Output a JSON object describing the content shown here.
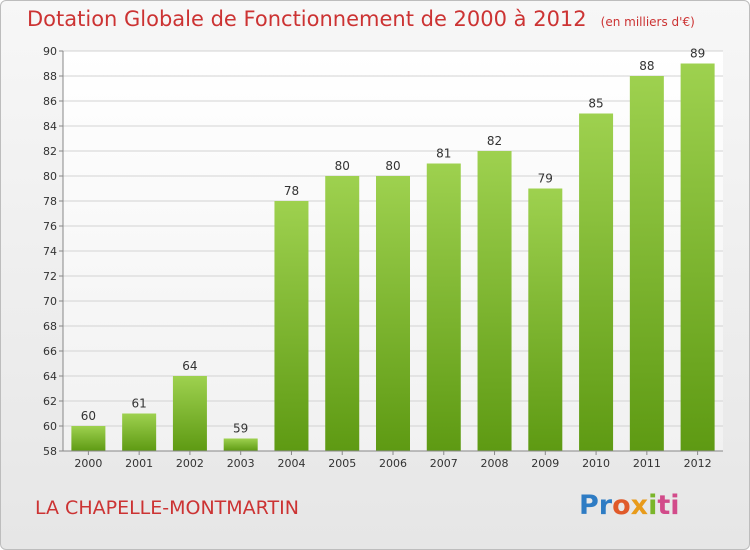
{
  "header": {
    "title": "Dotation Globale de Fonctionnement de 2000 à 2012",
    "unit": "(en milliers d'€)"
  },
  "footer": {
    "place": "LA CHAPELLE-MONTMARTIN",
    "logo": "Proxiti"
  },
  "colors": {
    "title": "#cc3333",
    "bar_top": "#9ed14f",
    "bar_bottom": "#5e9a13",
    "logo": [
      "#2e7cc4",
      "#e05a2a",
      "#e89b1a",
      "#7ab52a",
      "#d24b8a"
    ]
  },
  "chart_data": {
    "type": "bar",
    "title": "Dotation Globale de Fonctionnement de 2000 à 2012",
    "xlabel": "",
    "ylabel": "",
    "categories": [
      "2000",
      "2001",
      "2002",
      "2003",
      "2004",
      "2005",
      "2006",
      "2007",
      "2008",
      "2009",
      "2010",
      "2011",
      "2012"
    ],
    "values": [
      60,
      61,
      64,
      59,
      78,
      80,
      80,
      81,
      82,
      79,
      85,
      88,
      89
    ],
    "ylim": [
      58,
      90
    ],
    "yticks": [
      58,
      60,
      62,
      64,
      66,
      68,
      70,
      72,
      74,
      76,
      78,
      80,
      82,
      84,
      86,
      88,
      90
    ],
    "grid": true,
    "data_labels": true
  }
}
